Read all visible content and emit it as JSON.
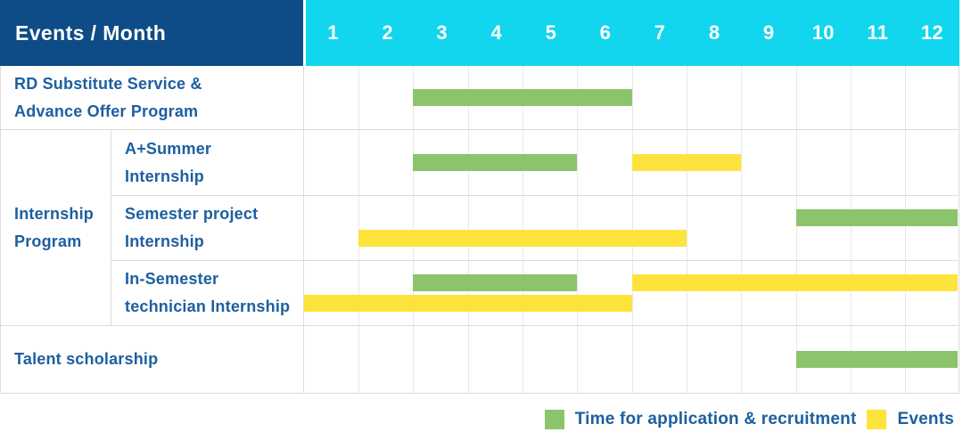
{
  "header": {
    "title": "Events / Month",
    "months": [
      "1",
      "2",
      "3",
      "4",
      "5",
      "6",
      "7",
      "8",
      "9",
      "10",
      "11",
      "12"
    ]
  },
  "colors": {
    "navy": "#0d4c86",
    "cyan": "#12d5ee",
    "green": "#8cc46b",
    "yellow": "#ffe33d",
    "text_blue": "#1d5fa0"
  },
  "chart_data": {
    "type": "bar",
    "subtype": "gantt",
    "title": "Events / Month",
    "x_axis": {
      "label": "Month",
      "ticks": [
        1,
        2,
        3,
        4,
        5,
        6,
        7,
        8,
        9,
        10,
        11,
        12
      ],
      "range": [
        1,
        12
      ]
    },
    "grid": true,
    "legend_position": "bottom-right",
    "group_label": "Internship Program",
    "rows": [
      {
        "label": "RD Substitute Service &\nAdvance Offer Program",
        "group": null,
        "lanes": [
          [
            {
              "color": "green",
              "start": 3,
              "end": 6
            }
          ]
        ]
      },
      {
        "label": "A+Summer\nInternship",
        "group": "Internship Program",
        "lanes": [
          [
            {
              "color": "green",
              "start": 3,
              "end": 5
            },
            {
              "color": "yellow",
              "start": 7,
              "end": 8
            }
          ]
        ]
      },
      {
        "label": "Semester project\nInternship",
        "group": "Internship Program",
        "lanes": [
          [
            {
              "color": "green",
              "start": 10,
              "end": 12
            }
          ],
          [
            {
              "color": "yellow",
              "start": 2,
              "end": 7
            }
          ]
        ]
      },
      {
        "label": "In-Semester\ntechnician Internship",
        "group": "Internship Program",
        "lanes": [
          [
            {
              "color": "green",
              "start": 3,
              "end": 5
            },
            {
              "color": "yellow",
              "start": 7,
              "end": 12
            }
          ],
          [
            {
              "color": "yellow",
              "start": 1,
              "end": 6
            }
          ]
        ]
      },
      {
        "label": "Talent scholarship",
        "group": null,
        "lanes": [
          [
            {
              "color": "green",
              "start": 10,
              "end": 12
            }
          ]
        ]
      }
    ]
  },
  "legend": {
    "items": [
      {
        "swatch": "green",
        "label": "Time for application & recruitment"
      },
      {
        "swatch": "yellow",
        "label": "Events"
      }
    ]
  }
}
